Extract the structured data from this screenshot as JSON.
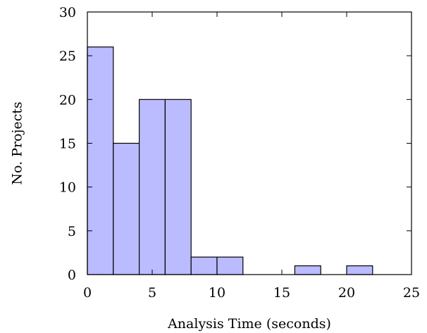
{
  "chart_data": {
    "type": "bar",
    "xlabel": "Analysis Time (seconds)",
    "ylabel": "No. Projects",
    "xlim": [
      0,
      25
    ],
    "ylim": [
      0,
      30
    ],
    "xticks": [
      0,
      5,
      10,
      15,
      20,
      25
    ],
    "yticks": [
      0,
      5,
      10,
      15,
      20,
      25,
      30
    ],
    "xtick_labels": [
      "0",
      "5",
      "10",
      "15",
      "20",
      "25"
    ],
    "ytick_labels": [
      "0",
      "5",
      "10",
      "15",
      "20",
      "25",
      "30"
    ],
    "bin_width": 2,
    "bins": [
      {
        "start": 0,
        "end": 2,
        "count": 26
      },
      {
        "start": 2,
        "end": 4,
        "count": 15
      },
      {
        "start": 4,
        "end": 6,
        "count": 20
      },
      {
        "start": 6,
        "end": 8,
        "count": 20
      },
      {
        "start": 8,
        "end": 10,
        "count": 2
      },
      {
        "start": 10,
        "end": 12,
        "count": 2
      },
      {
        "start": 12,
        "end": 14,
        "count": 0
      },
      {
        "start": 14,
        "end": 16,
        "count": 0
      },
      {
        "start": 16,
        "end": 18,
        "count": 1
      },
      {
        "start": 18,
        "end": 20,
        "count": 0
      },
      {
        "start": 20,
        "end": 22,
        "count": 1
      },
      {
        "start": 22,
        "end": 24,
        "count": 0
      }
    ],
    "grid": false,
    "bar_color": "#bbbbff",
    "edge_color": "#000000"
  }
}
